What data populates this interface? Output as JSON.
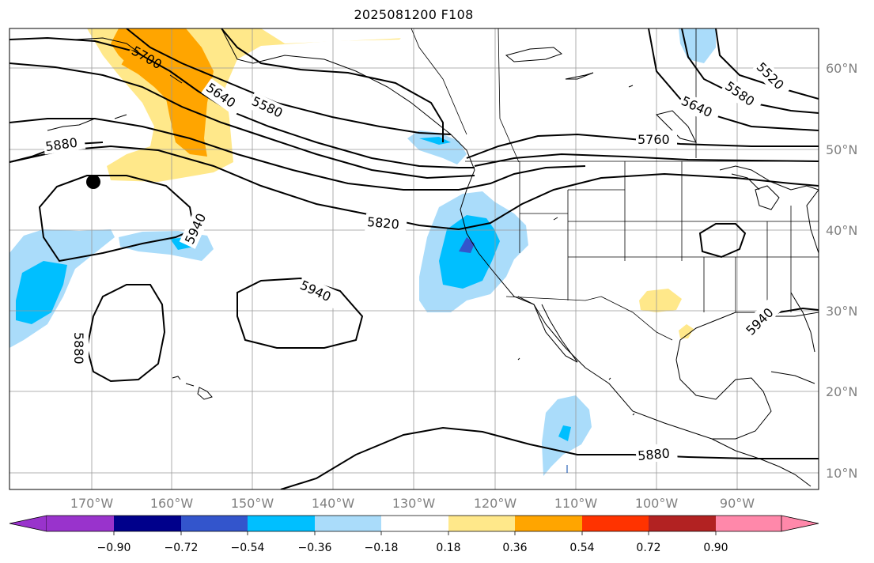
{
  "title": "2025081200 F108",
  "map": {
    "longitude_labels": [
      "170°W",
      "160°W",
      "150°W",
      "140°W",
      "130°W",
      "120°W",
      "110°W",
      "100°W",
      "90°W"
    ],
    "latitude_labels": [
      "60°N",
      "50°N",
      "40°N",
      "30°N",
      "20°N",
      "10°N"
    ],
    "contour_labels": [
      "5700",
      "5640",
      "5580",
      "5880",
      "5940",
      "5940",
      "5880",
      "5820",
      "5760",
      "5640",
      "5580",
      "5520",
      "5880",
      "5940"
    ]
  },
  "colorbar": {
    "tick_labels": [
      "−0.90",
      "−0.72",
      "−0.54",
      "−0.36",
      "−0.18",
      "0.18",
      "0.36",
      "0.54",
      "0.72",
      "0.90"
    ],
    "colors": [
      "#9933cc",
      "#00008b",
      "#3355cc",
      "#00bfff",
      "#aadcfa",
      "#ffffff",
      "#ffe88a",
      "#ffa500",
      "#ff3300",
      "#b22222",
      "#ff88aa"
    ]
  },
  "marker": {
    "description_color": "#000000"
  }
}
